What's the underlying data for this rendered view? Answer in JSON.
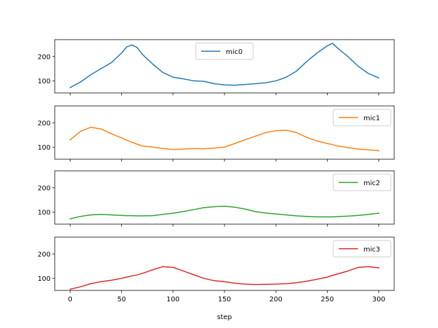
{
  "chart_data": {
    "type": "line",
    "layout": "stacked-subplots",
    "sharex": true,
    "sharey": true,
    "xlabel": "step",
    "xlim": [
      -15,
      315
    ],
    "ylim": [
      50,
      270
    ],
    "xticks": [
      0,
      50,
      100,
      150,
      200,
      250,
      300
    ],
    "yticks": [
      100,
      200
    ],
    "grid": false,
    "x": [
      0,
      10,
      20,
      30,
      40,
      50,
      55,
      60,
      65,
      70,
      80,
      90,
      100,
      110,
      120,
      130,
      140,
      150,
      160,
      170,
      180,
      190,
      200,
      210,
      220,
      230,
      240,
      250,
      255,
      260,
      270,
      280,
      290,
      300
    ],
    "series": [
      {
        "name": "mic0",
        "color": "#1f77b4",
        "legend_position": "top-center",
        "values": [
          72,
          95,
          125,
          150,
          175,
          215,
          240,
          248,
          238,
          210,
          170,
          135,
          115,
          108,
          100,
          98,
          88,
          83,
          82,
          85,
          88,
          92,
          100,
          115,
          140,
          180,
          215,
          245,
          255,
          235,
          200,
          160,
          130,
          112
        ]
      },
      {
        "name": "mic1",
        "color": "#ff7f0e",
        "legend_position": "top-right",
        "values": [
          130,
          165,
          182,
          175,
          155,
          138,
          128,
          120,
          112,
          105,
          100,
          94,
          90,
          92,
          94,
          93,
          96,
          100,
          115,
          130,
          145,
          160,
          168,
          170,
          160,
          140,
          125,
          115,
          110,
          105,
          98,
          92,
          89,
          85
        ]
      },
      {
        "name": "mic2",
        "color": "#2ca02c",
        "legend_position": "top-right",
        "values": [
          72,
          82,
          88,
          90,
          88,
          86,
          85,
          85,
          84,
          84,
          85,
          90,
          95,
          102,
          110,
          118,
          122,
          124,
          120,
          112,
          102,
          96,
          92,
          88,
          84,
          82,
          80,
          80,
          80,
          81,
          83,
          86,
          90,
          95
        ]
      },
      {
        "name": "mic3",
        "color": "#d62728",
        "legend_position": "top-right",
        "values": [
          55,
          65,
          78,
          86,
          92,
          100,
          105,
          110,
          114,
          120,
          135,
          148,
          145,
          130,
          115,
          100,
          90,
          86,
          80,
          76,
          74,
          75,
          76,
          78,
          82,
          88,
          96,
          105,
          112,
          118,
          130,
          145,
          148,
          143
        ]
      }
    ]
  }
}
